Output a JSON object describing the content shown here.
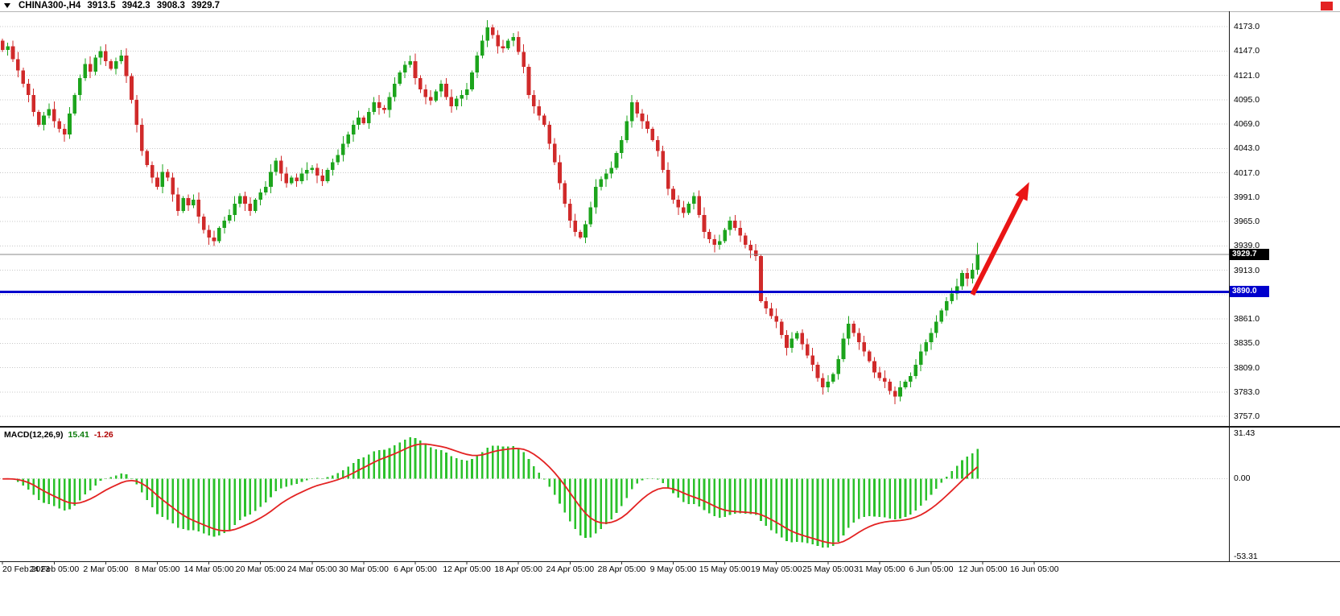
{
  "quote_bar": {
    "symbol_period": "CHINA300-,H4",
    "open": "3913.5",
    "high": "3942.3",
    "low": "3908.3",
    "close": "3929.7"
  },
  "indicator": {
    "label": "MACD(12,26,9)",
    "value_main": "15.41",
    "value_signal": "-1.26",
    "scale_max": "31.43",
    "scale_zero": "0.00",
    "scale_min": "-53.31"
  },
  "price_axis_ticks": [
    "4173.0",
    "4147.0",
    "4121.0",
    "4095.0",
    "4069.0",
    "4043.0",
    "4017.0",
    "3991.0",
    "3965.0",
    "3939.0",
    "3913.0",
    "3887.0",
    "3861.0",
    "3835.0",
    "3809.0",
    "3783.0",
    "3757.0"
  ],
  "time_axis": {
    "labels": [
      "20 Feb 2023",
      "24 Feb 05:00",
      "2 Mar 05:00",
      "8 Mar 05:00",
      "14 Mar 05:00",
      "20 Mar 05:00",
      "24 Mar 05:00",
      "30 Mar 05:00",
      "6 Apr 05:00",
      "12 Apr 05:00",
      "18 Apr 05:00",
      "24 Apr 05:00",
      "28 Apr 05:00",
      "9 May 05:00",
      "15 May 05:00",
      "19 May 05:00",
      "25 May 05:00",
      "31 May 05:00",
      "6 Jun 05:00",
      "12 Jun 05:00",
      "16 Jun 05:00"
    ],
    "bars_per_label": 10
  },
  "chart_data": {
    "type": "candlestick",
    "symbol": "CHINA300-",
    "timeframe": "H4",
    "title": "CHINA300-,H4 3913.5 3942.3 3908.3 3929.7",
    "price_axis": {
      "max": 4173.0,
      "min": 3757.0,
      "tick_step": 26.0
    },
    "first_open": 4158,
    "closes": [
      4148,
      4152,
      4138,
      4126,
      4112,
      4100,
      4082,
      4068,
      4078,
      4085,
      4072,
      4064,
      4058,
      4080,
      4100,
      4118,
      4133,
      4125,
      4140,
      4147,
      4136,
      4128,
      4136,
      4142,
      4120,
      4095,
      4068,
      4040,
      4025,
      4012,
      4002,
      4018,
      4012,
      3994,
      3976,
      3990,
      3982,
      3988,
      3970,
      3956,
      3948,
      3944,
      3958,
      3966,
      3972,
      3984,
      3992,
      3984,
      3976,
      3988,
      3996,
      4002,
      4018,
      4030,
      4016,
      4006,
      4012,
      4008,
      4016,
      4020,
      4022,
      4014,
      4008,
      4020,
      4028,
      4036,
      4048,
      4058,
      4068,
      4076,
      4070,
      4082,
      4092,
      4086,
      4084,
      4098,
      4112,
      4124,
      4132,
      4136,
      4118,
      4106,
      4098,
      4094,
      4104,
      4112,
      4098,
      4088,
      4096,
      4100,
      4106,
      4124,
      4142,
      4158,
      4172,
      4164,
      4152,
      4150,
      4158,
      4162,
      4146,
      4130,
      4100,
      4088,
      4078,
      4068,
      4048,
      4028,
      4006,
      3984,
      3966,
      3954,
      3948,
      3962,
      3980,
      4002,
      4010,
      4016,
      4022,
      4038,
      4052,
      4072,
      4092,
      4080,
      4072,
      4064,
      4052,
      4040,
      4020,
      4000,
      3988,
      3980,
      3974,
      3984,
      3992,
      3972,
      3954,
      3946,
      3940,
      3944,
      3956,
      3966,
      3958,
      3950,
      3940,
      3934,
      3928,
      3880,
      3872,
      3864,
      3858,
      3844,
      3830,
      3840,
      3846,
      3834,
      3822,
      3812,
      3798,
      3788,
      3794,
      3802,
      3818,
      3840,
      3856,
      3846,
      3836,
      3826,
      3816,
      3804,
      3798,
      3794,
      3784,
      3778,
      3788,
      3794,
      3800,
      3812,
      3826,
      3836,
      3846,
      3858,
      3870,
      3880,
      3888,
      3896,
      3910,
      3904,
      3913.5,
      3929.7
    ],
    "last_bar": {
      "open": 3913.5,
      "high": 3942.3,
      "low": 3908.3,
      "close": 3929.7
    },
    "current_price": 3929.7,
    "current_price_label": "3929.7",
    "hline": {
      "price": 3890.0,
      "label": "3890.0"
    },
    "macd": {
      "fast": 12,
      "slow": 26,
      "signal": 9,
      "last_main": 15.41,
      "last_signal": -1.26,
      "scale": {
        "max": 31.43,
        "zero": 0.0,
        "min": -53.31
      }
    },
    "arrow_annotation": {
      "from_bar": 188,
      "from_price": 3887,
      "to_bar": 199,
      "to_price": 4007
    }
  },
  "colors": {
    "bull": "#1ca41c",
    "bear": "#d02a2a",
    "macd_bar": "#2bc12b",
    "macd_signal": "#e32222",
    "hline": "#0000cd",
    "current_line": "#8a8a8a",
    "arrow": "#ea1515",
    "grid": "#c8c8c8",
    "axis_text": "#000000",
    "badge_current_bg": "#000000",
    "badge_hline_bg": "#0000cd",
    "top_right_marker": "#e32222"
  }
}
